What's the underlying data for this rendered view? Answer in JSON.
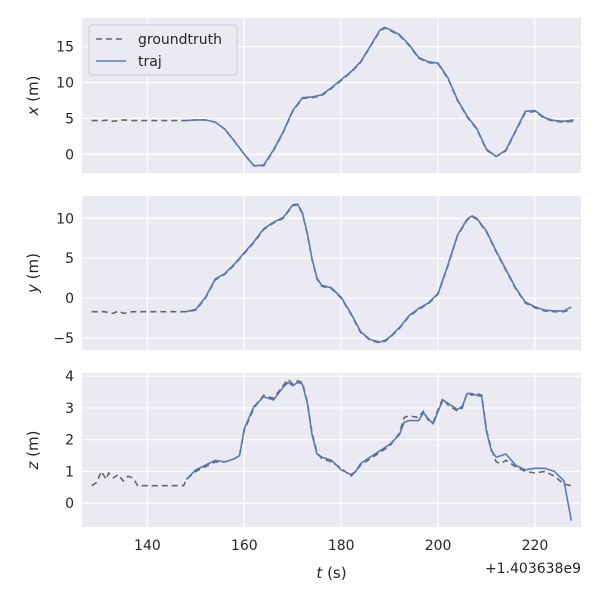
{
  "colors": {
    "panel_bg": "#eaeaf2",
    "grid": "#ffffff",
    "groundtruth": "#666666",
    "traj": "#5a7ab8",
    "text": "#262626"
  },
  "chart_data": {
    "type": "line",
    "x_axis": {
      "label_var": "t",
      "label_unit": " (s)",
      "ticks": [
        140,
        160,
        180,
        200,
        220
      ],
      "tick_labels": [
        "140",
        "160",
        "180",
        "200",
        "220"
      ],
      "offset_text": "+1.403638e9",
      "range": [
        126.5,
        229.5
      ]
    },
    "legend": {
      "position": "top-left",
      "entries": [
        {
          "name": "groundtruth",
          "style": "dashed"
        },
        {
          "name": "traj",
          "style": "solid"
        }
      ]
    },
    "subplots": [
      {
        "label_var": "x",
        "label_unit": " (m)",
        "ylim": [
          -2.6,
          19.0
        ],
        "yticks": [
          0,
          5,
          10,
          15
        ],
        "ytick_labels": [
          "0",
          "5",
          "10",
          "15"
        ],
        "series": [
          {
            "name": "groundtruth",
            "x": [
              128.5,
              131,
              132,
              133,
              135,
              137,
              140,
              145,
              148,
              150,
              152,
              154,
              156,
              158,
              160,
              162,
              164,
              166,
              168,
              170,
              172,
              174,
              176,
              178,
              180,
              182,
              184,
              186,
              188,
              189,
              190,
              192,
              194,
              196,
              198,
              200,
              202,
              204,
              206,
              208,
              210,
              212,
              214,
              216,
              218,
              220,
              222,
              224,
              226,
              228
            ],
            "y": [
              4.7,
              4.7,
              4.8,
              4.6,
              4.8,
              4.7,
              4.7,
              4.7,
              4.7,
              4.8,
              4.8,
              4.5,
              3.5,
              1.8,
              0.0,
              -1.6,
              -1.6,
              0.5,
              3.0,
              6.0,
              7.8,
              7.9,
              8.2,
              9.2,
              10.3,
              11.4,
              12.8,
              15.0,
              17.2,
              17.6,
              17.3,
              16.6,
              15.2,
              13.4,
              12.8,
              12.6,
              10.6,
              7.5,
              5.2,
              3.5,
              0.6,
              -0.3,
              0.5,
              3.2,
              5.8,
              6.0,
              5.0,
              4.6,
              4.5,
              4.6
            ]
          },
          {
            "name": "traj",
            "x": [
              148,
              150,
              152,
              154,
              156,
              158,
              160,
              162,
              164,
              166,
              168,
              170,
              172,
              174,
              176,
              178,
              180,
              182,
              184,
              186,
              188,
              189,
              190,
              192,
              194,
              196,
              198,
              200,
              202,
              204,
              206,
              208,
              210,
              212,
              214,
              216,
              218,
              220,
              222,
              224,
              226,
              228
            ],
            "y": [
              4.7,
              4.8,
              4.8,
              4.5,
              3.5,
              1.8,
              0.0,
              -1.6,
              -1.5,
              0.6,
              3.1,
              6.1,
              7.9,
              8.0,
              8.3,
              9.3,
              10.4,
              11.5,
              12.9,
              15.1,
              17.3,
              17.7,
              17.4,
              16.7,
              15.3,
              13.5,
              12.9,
              12.7,
              10.7,
              7.6,
              5.3,
              3.6,
              0.7,
              -0.3,
              0.6,
              3.3,
              6.0,
              6.1,
              5.1,
              4.7,
              4.6,
              4.8
            ]
          }
        ]
      },
      {
        "label_var": "y",
        "label_unit": " (m)",
        "ylim": [
          -6.5,
          12.8
        ],
        "yticks": [
          -5,
          0,
          5,
          10
        ],
        "ytick_labels": [
          "−5",
          "0",
          "5",
          "10"
        ],
        "series": [
          {
            "name": "groundtruth",
            "x": [
              128.5,
              131,
              133,
              134,
              135,
              137,
              140,
              145,
              148,
              150,
              152,
              154,
              156,
              158,
              160,
              162,
              164,
              166,
              168,
              170,
              171,
              172,
              173,
              174,
              175,
              176,
              178,
              180,
              182,
              184,
              186,
              188,
              189,
              190,
              192,
              194,
              196,
              198,
              200,
              202,
              204,
              206,
              207,
              208,
              210,
              212,
              214,
              216,
              218,
              220,
              222,
              224,
              226,
              227.5
            ],
            "y": [
              -1.7,
              -1.7,
              -1.9,
              -1.6,
              -1.9,
              -1.7,
              -1.7,
              -1.7,
              -1.7,
              -1.5,
              0.0,
              2.3,
              3.0,
              4.2,
              5.6,
              7.0,
              8.6,
              9.4,
              10.0,
              11.6,
              11.7,
              10.6,
              8.0,
              4.8,
              2.4,
              1.5,
              1.2,
              0.0,
              -2.0,
              -4.3,
              -5.3,
              -5.6,
              -5.4,
              -5.0,
              -3.8,
              -2.3,
              -1.4,
              -0.7,
              0.5,
              4.0,
              7.8,
              9.8,
              10.2,
              9.9,
              8.3,
              5.8,
              3.5,
              1.2,
              -0.6,
              -1.2,
              -1.6,
              -1.7,
              -1.7,
              -1.4
            ]
          },
          {
            "name": "traj",
            "x": [
              148,
              150,
              152,
              154,
              156,
              158,
              160,
              162,
              164,
              166,
              168,
              170,
              171,
              172,
              173,
              174,
              175,
              176,
              178,
              180,
              182,
              184,
              186,
              188,
              189,
              190,
              192,
              194,
              196,
              198,
              200,
              202,
              204,
              206,
              207,
              208,
              210,
              212,
              214,
              216,
              218,
              220,
              222,
              224,
              226,
              227.5
            ],
            "y": [
              -1.7,
              -1.4,
              0.1,
              2.4,
              3.1,
              4.3,
              5.7,
              7.1,
              8.7,
              9.5,
              10.1,
              11.7,
              11.8,
              10.7,
              8.1,
              4.9,
              2.5,
              1.6,
              1.3,
              0.1,
              -1.9,
              -4.2,
              -5.2,
              -5.5,
              -5.3,
              -4.9,
              -3.7,
              -2.2,
              -1.3,
              -0.6,
              0.6,
              4.1,
              7.9,
              9.9,
              10.3,
              10.0,
              8.4,
              5.9,
              3.6,
              1.3,
              -0.5,
              -1.1,
              -1.5,
              -1.6,
              -1.6,
              -1.1
            ]
          }
        ]
      },
      {
        "label_var": "z",
        "label_unit": " (m)",
        "ylim": [
          -0.75,
          4.1
        ],
        "yticks": [
          0,
          1,
          2,
          3,
          4
        ],
        "ytick_labels": [
          "0",
          "1",
          "2",
          "3",
          "4"
        ],
        "series": [
          {
            "name": "groundtruth",
            "x": [
              128.5,
              129.5,
              130.5,
              131.5,
              132,
              133,
              134,
              135,
              136,
              137,
              138,
              140,
              145,
              147.5,
              148,
              150,
              152,
              154,
              156,
              158,
              159,
              160,
              162,
              164,
              166,
              168,
              169,
              170,
              171,
              172,
              173,
              174,
              175,
              176,
              178,
              180,
              182,
              183,
              184,
              186,
              188,
              190,
              192,
              193,
              194,
              196,
              197,
              198,
              199,
              200,
              201,
              202,
              203,
              204,
              205,
              206,
              207,
              208,
              209,
              210,
              211,
              212,
              213,
              214,
              216,
              218,
              220,
              222,
              224,
              226,
              227.5
            ],
            "y": [
              0.55,
              0.65,
              1.0,
              0.75,
              0.95,
              0.8,
              0.9,
              0.7,
              0.85,
              0.8,
              0.55,
              0.55,
              0.55,
              0.55,
              0.75,
              1.0,
              1.15,
              1.3,
              1.3,
              1.4,
              1.5,
              2.3,
              3.0,
              3.4,
              3.3,
              3.7,
              3.9,
              3.75,
              3.85,
              3.8,
              3.2,
              2.2,
              1.6,
              1.4,
              1.3,
              1.1,
              0.85,
              1.0,
              1.2,
              1.4,
              1.6,
              1.8,
              2.2,
              2.7,
              2.75,
              2.7,
              2.9,
              2.6,
              2.55,
              2.95,
              3.3,
              3.1,
              3.0,
              2.9,
              3.0,
              3.5,
              3.4,
              3.45,
              3.4,
              2.3,
              1.7,
              1.3,
              1.25,
              1.35,
              1.15,
              1.0,
              0.95,
              1.0,
              0.85,
              0.6,
              0.55
            ]
          },
          {
            "name": "traj",
            "x": [
              148,
              150,
              152,
              154,
              156,
              158,
              159,
              160,
              162,
              164,
              166,
              168,
              169,
              170,
              171,
              172,
              173,
              174,
              175,
              176,
              178,
              180,
              182,
              183,
              184,
              186,
              188,
              190,
              192,
              193,
              194,
              196,
              197,
              198,
              199,
              200,
              201,
              202,
              203,
              204,
              205,
              206,
              207,
              208,
              209,
              210,
              211,
              212,
              213,
              214,
              216,
              218,
              220,
              222,
              224,
              226,
              227.5
            ],
            "y": [
              0.75,
              1.05,
              1.2,
              1.35,
              1.3,
              1.4,
              1.5,
              2.35,
              3.05,
              3.35,
              3.25,
              3.65,
              3.8,
              3.7,
              3.8,
              3.75,
              3.15,
              2.15,
              1.55,
              1.45,
              1.35,
              1.05,
              0.9,
              1.0,
              1.25,
              1.45,
              1.65,
              1.85,
              2.15,
              2.55,
              2.6,
              2.6,
              2.85,
              2.65,
              2.5,
              2.9,
              3.25,
              3.15,
              3.05,
              2.95,
              3.05,
              3.45,
              3.45,
              3.4,
              3.35,
              2.25,
              1.65,
              1.45,
              1.5,
              1.55,
              1.2,
              1.05,
              1.1,
              1.1,
              1.0,
              0.7,
              -0.55
            ]
          }
        ]
      }
    ]
  }
}
